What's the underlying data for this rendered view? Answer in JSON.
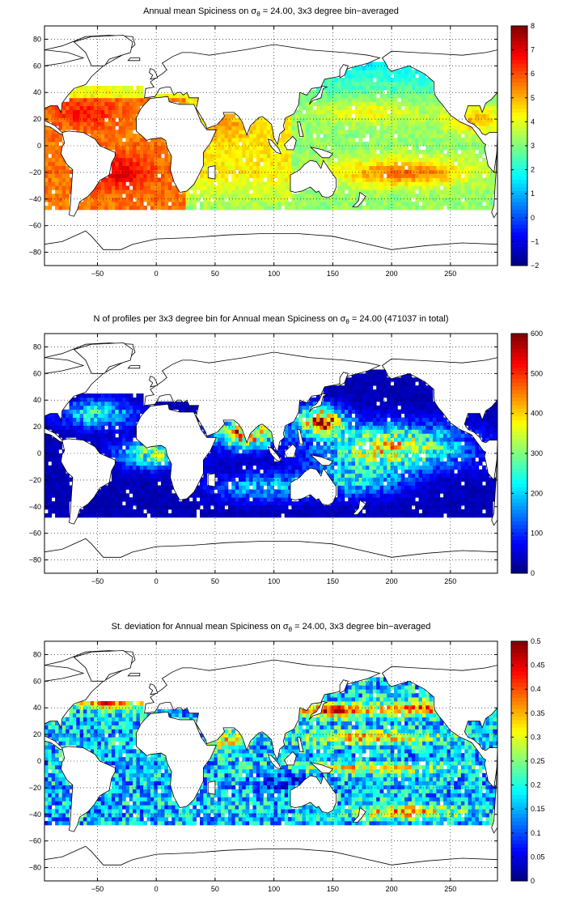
{
  "figure": {
    "panels": [
      {
        "id": "spiciness",
        "title": {
          "pre": "Annual mean Spiciness on ",
          "sigma": "σ",
          "sub": "θ",
          "post": " = 24.00, 3x3 degree bin−averaged"
        },
        "colorbar": {
          "min": -2,
          "max": 8,
          "ticks": [
            -2,
            -1,
            0,
            1,
            2,
            3,
            4,
            5,
            6,
            7,
            8
          ],
          "tick_labels": [
            "−2",
            "−1",
            "0",
            "1",
            "2",
            "3",
            "4",
            "5",
            "6",
            "7",
            "8"
          ]
        }
      },
      {
        "id": "profile-count",
        "title": {
          "pre": "N of profiles per 3x3 degree bin for Annual mean Spiciness on ",
          "sigma": "σ",
          "sub": "θ",
          "post": " = 24.00 (471037 in total)"
        },
        "colorbar": {
          "min": 0,
          "max": 600,
          "ticks": [
            0,
            100,
            200,
            300,
            400,
            500,
            600
          ],
          "tick_labels": [
            "0",
            "100",
            "200",
            "300",
            "400",
            "500",
            "600"
          ]
        }
      },
      {
        "id": "std-deviation",
        "title": {
          "pre": "St. deviation for Annual mean Spiciness on ",
          "sigma": "σ",
          "sub": "θ",
          "post": " = 24.00, 3x3 degree bin−averaged"
        },
        "colorbar": {
          "min": 0,
          "max": 0.5,
          "ticks": [
            0,
            0.05,
            0.1,
            0.15,
            0.2,
            0.25,
            0.3,
            0.35,
            0.4,
            0.45,
            0.5
          ],
          "tick_labels": [
            "0",
            "0.05",
            "0.1",
            "0.15",
            "0.2",
            "0.25",
            "0.3",
            "0.35",
            "0.4",
            "0.45",
            "0.5"
          ]
        }
      }
    ],
    "x_axis": {
      "min": -95,
      "max": 290,
      "ticks": [
        -50,
        0,
        50,
        100,
        150,
        200,
        250
      ],
      "tick_labels": [
        "−50",
        "0",
        "50",
        "100",
        "150",
        "200",
        "250"
      ]
    },
    "y_axis": {
      "min": -90,
      "max": 90,
      "ticks": [
        -80,
        -60,
        -40,
        -20,
        0,
        20,
        40,
        60,
        80
      ],
      "tick_labels": [
        "−80",
        "−60",
        "−40",
        "−20",
        "0",
        "20",
        "40",
        "60",
        "80"
      ]
    },
    "colormap": "jet",
    "grid": "dotted",
    "land_color": "#ffffff",
    "coastline_color": "#000000"
  }
}
